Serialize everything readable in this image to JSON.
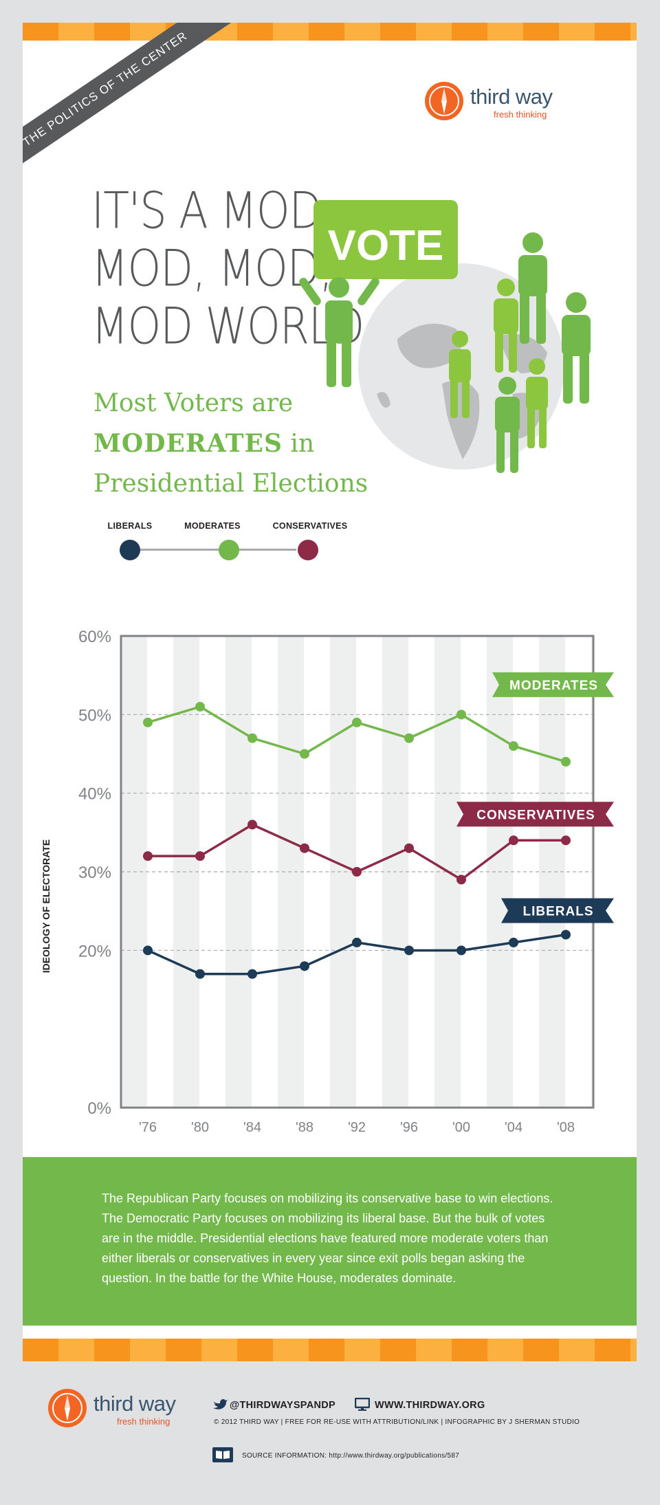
{
  "ribbon": "THE POLITICS OF THE CENTER",
  "brand": {
    "name": "third way",
    "tagline": "fresh thinking",
    "orange": "#f26522",
    "navy": "#39566e"
  },
  "headline": {
    "line1": "IT'S A MOD,",
    "line2": "MOD, MOD,",
    "line3": "MOD WORLD"
  },
  "illustration": {
    "sign_text": "VOTE"
  },
  "subhead": {
    "line1": "Most Voters are",
    "bold": "MODERATES",
    "after_bold": " in",
    "line3": "Presidential Elections"
  },
  "legend": [
    {
      "label": "LIBERALS",
      "color": "#1d3a57"
    },
    {
      "label": "MODERATES",
      "color": "#72b84a"
    },
    {
      "label": "CONSERVATIVES",
      "color": "#8c2a48"
    }
  ],
  "chart_data": {
    "type": "line",
    "title": "",
    "ylabel": "IDEOLOGY OF ELECTORATE",
    "xlabel": "",
    "categories": [
      "'76",
      "'80",
      "'84",
      "'88",
      "'92",
      "'96",
      "'00",
      "'04",
      "'08"
    ],
    "yticks": [
      "0%",
      "20%",
      "30%",
      "40%",
      "50%",
      "60%"
    ],
    "ytick_values": [
      0,
      20,
      30,
      40,
      50,
      60
    ],
    "ylim": [
      0,
      60
    ],
    "gridlines": [
      20,
      30,
      40,
      50
    ],
    "series": [
      {
        "name": "MODERATES",
        "color": "#72b84a",
        "values": [
          49,
          51,
          47,
          45,
          49,
          47,
          50,
          46,
          44
        ]
      },
      {
        "name": "CONSERVATIVES",
        "color": "#8c2a48",
        "values": [
          32,
          32,
          36,
          33,
          30,
          33,
          29,
          34,
          34
        ]
      },
      {
        "name": "LIBERALS",
        "color": "#1d3a57",
        "values": [
          20,
          17,
          17,
          18,
          21,
          20,
          20,
          21,
          22
        ]
      }
    ]
  },
  "info_text": "The Republican Party focuses on mobilizing its conservative base to win elections. The Democratic Party focuses on mobilizing its liberal base. But the bulk of votes are in the middle. Presidential elections have featured more moderate voters than either liberals or conservatives in every year since exit polls began asking the question. In the battle for the White House, moderates dominate.",
  "footer": {
    "twitter": "@THIRDWAYSPANDP",
    "website": "WWW.THIRDWAY.ORG",
    "credits": "© 2012 THIRD WAY  |  FREE FOR RE-USE WITH ATTRIBUTION/LINK  |  INFOGRAPHIC BY J SHERMAN STUDIO",
    "source_label": "SOURCE INFORMATION:",
    "source_url": "http://www.thirdway.org/publications/587"
  }
}
